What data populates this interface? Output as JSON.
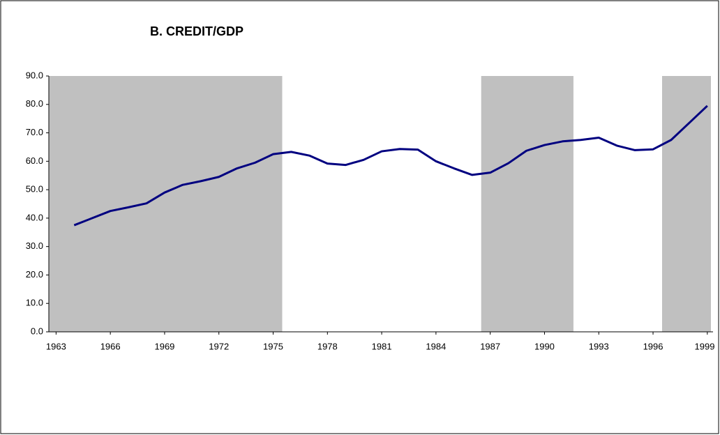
{
  "chart_data": {
    "type": "line",
    "title": "B. CREDIT/GDP",
    "x": [
      1964,
      1965,
      1966,
      1967,
      1968,
      1969,
      1970,
      1971,
      1972,
      1973,
      1974,
      1975,
      1976,
      1977,
      1978,
      1979,
      1980,
      1981,
      1982,
      1983,
      1984,
      1985,
      1986,
      1987,
      1988,
      1989,
      1990,
      1991,
      1992,
      1993,
      1994,
      1995,
      1996,
      1997,
      1998,
      1999
    ],
    "series": [
      {
        "name": "Credit/GDP",
        "color": "#000080",
        "values": [
          37.5,
          40.0,
          42.5,
          43.8,
          45.2,
          49.0,
          51.7,
          53.0,
          54.5,
          57.5,
          59.5,
          62.5,
          63.3,
          62.0,
          59.2,
          58.7,
          60.5,
          63.5,
          64.3,
          64.1,
          60.0,
          57.5,
          55.2,
          56.0,
          59.3,
          63.7,
          65.7,
          67.0,
          67.5,
          68.3,
          65.5,
          63.9,
          64.2,
          67.5,
          73.5,
          79.5
        ]
      }
    ],
    "shaded_regions": [
      [
        1962.6,
        1975.5
      ],
      [
        1986.5,
        1991.6
      ],
      [
        1996.5,
        1999.2
      ]
    ],
    "shade_color": "#c0c0c0",
    "xlim": [
      1962.6,
      1999.2
    ],
    "xticks": [
      1963,
      1966,
      1969,
      1972,
      1975,
      1978,
      1981,
      1984,
      1987,
      1990,
      1993,
      1996,
      1999
    ],
    "ylim": [
      0,
      90
    ],
    "yticks": [
      {
        "value": 0,
        "label": "0.0"
      },
      {
        "value": 10,
        "label": "10.0"
      },
      {
        "value": 20,
        "label": "20.0"
      },
      {
        "value": 30,
        "label": "30.0"
      },
      {
        "value": 40,
        "label": "40.0"
      },
      {
        "value": 50,
        "label": "50.0"
      },
      {
        "value": 60,
        "label": "60.0"
      },
      {
        "value": 70,
        "label": "70.0"
      },
      {
        "value": 80,
        "label": "80.0"
      },
      {
        "value": 90,
        "label": "90.0"
      }
    ],
    "grid": false
  }
}
